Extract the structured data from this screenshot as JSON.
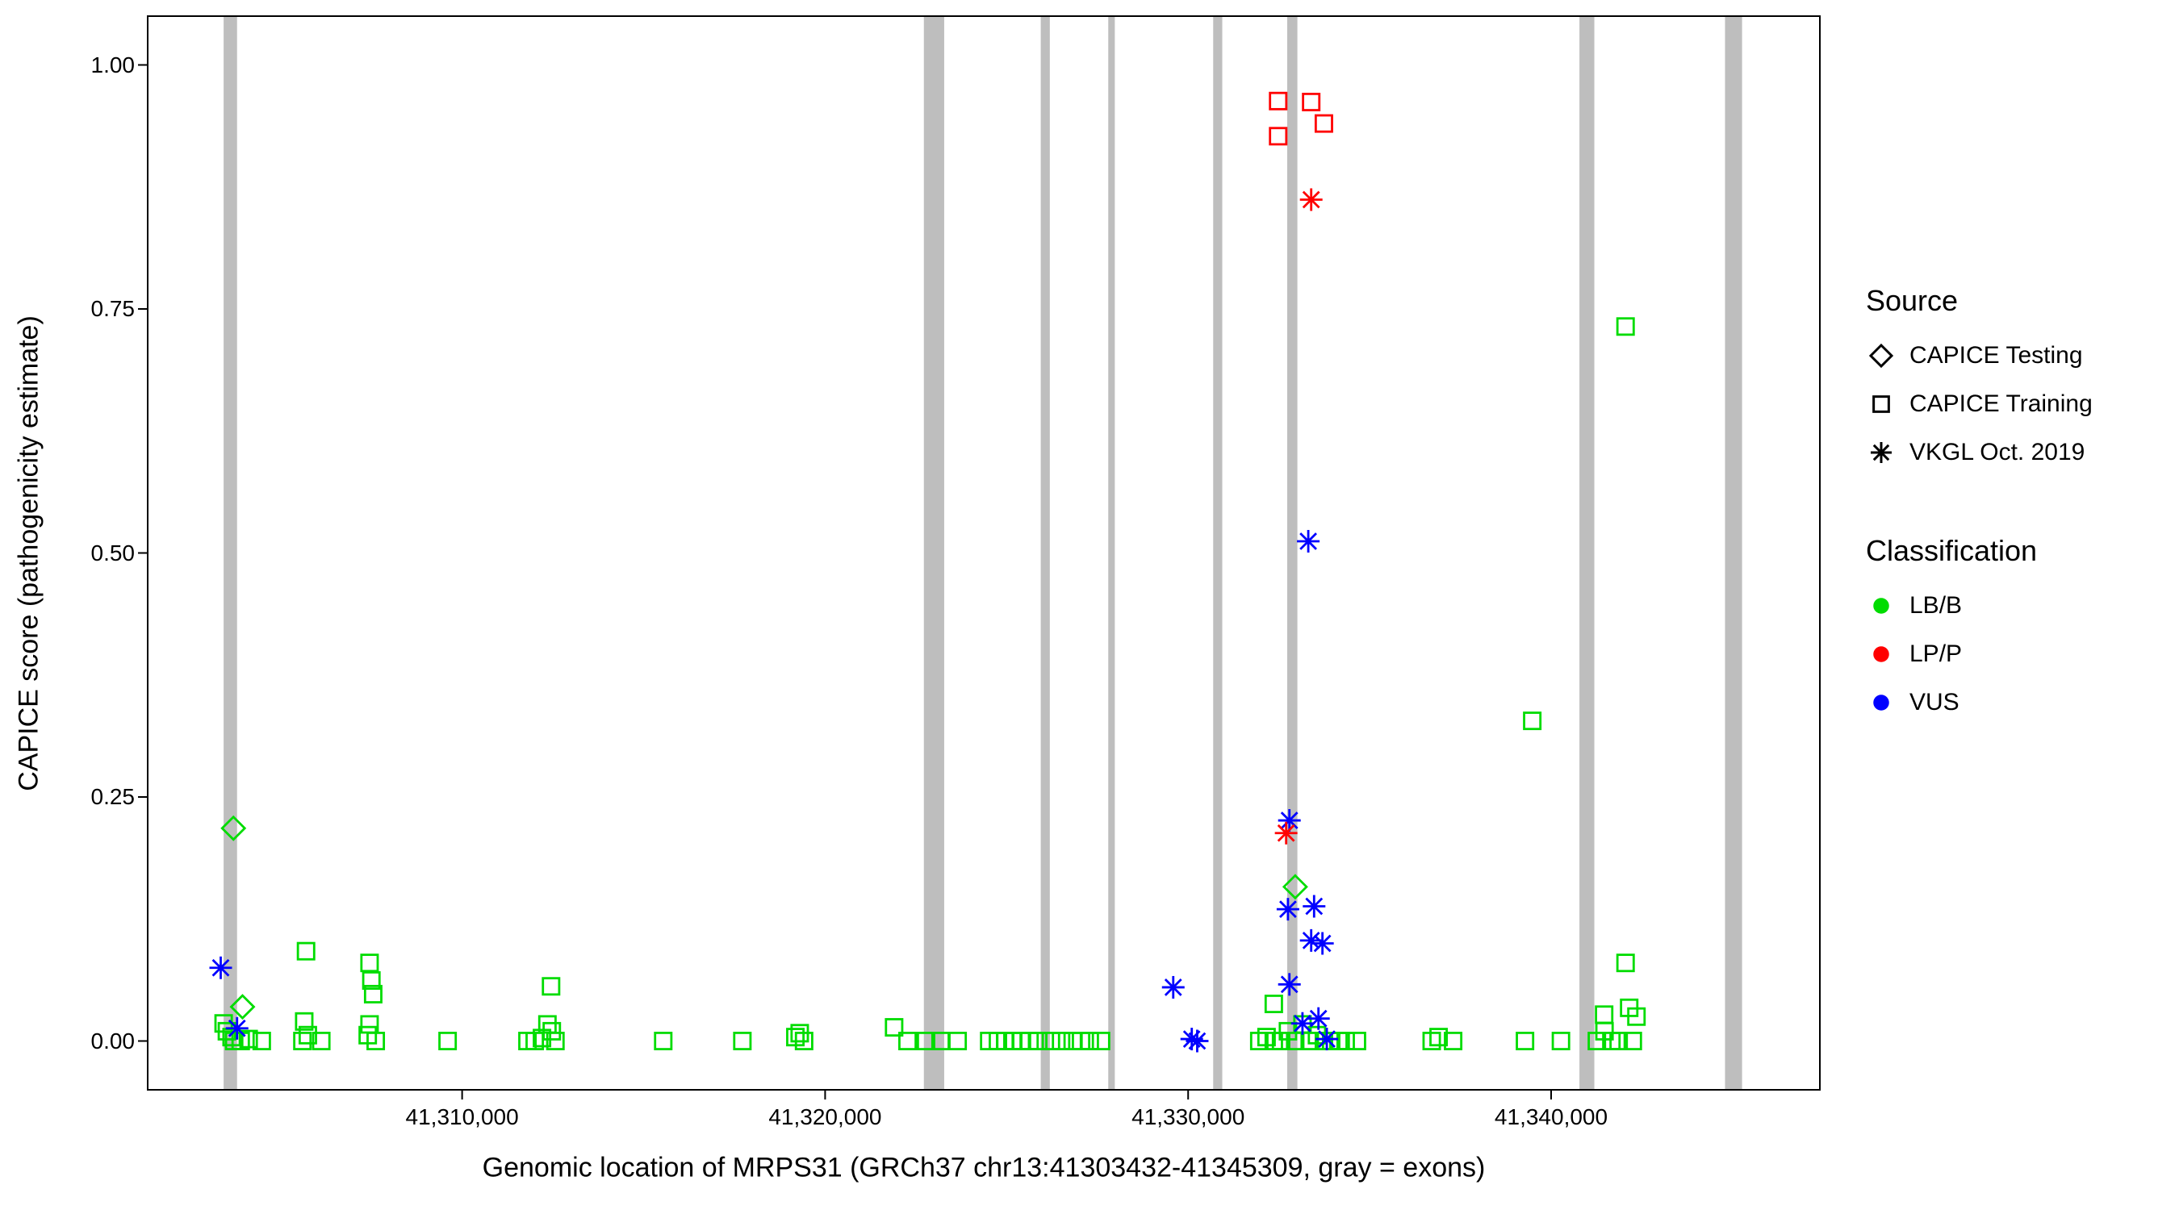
{
  "figure": {
    "background": "#FFFFFF",
    "panel_border_color": "#000000",
    "text_color": "#000000"
  },
  "colors": {
    "LB/B": "#00DC00",
    "LP/P": "#FF0000",
    "VUS": "#0000FF",
    "exon": "#BEBEBE"
  },
  "legend": {
    "source": {
      "title": "Source",
      "items": [
        {
          "label": "CAPICE Testing",
          "shape": "diamond"
        },
        {
          "label": "CAPICE Training",
          "shape": "square"
        },
        {
          "label": "VKGL Oct. 2019",
          "shape": "asterisk"
        }
      ]
    },
    "classification": {
      "title": "Classification",
      "items": [
        {
          "label": "LB/B",
          "color": "#00DC00"
        },
        {
          "label": "LP/P",
          "color": "#FF0000"
        },
        {
          "label": "VUS",
          "color": "#0000FF"
        }
      ]
    }
  },
  "chart_data": {
    "type": "scatter",
    "xlabel": "Genomic location of MRPS31 (GRCh37 chr13:41303432-41345309, gray = exons)",
    "ylabel": "CAPICE score (pathogenicity estimate)",
    "xlim": [
      41301338,
      41347403
    ],
    "ylim": [
      -0.05,
      1.05
    ],
    "grid": false,
    "legend_position": "right",
    "x_ticks": {
      "values": [
        41310000,
        41320000,
        41330000,
        41340000
      ],
      "labels": [
        "41,310,000",
        "41,320,000",
        "41,330,000",
        "41,340,000"
      ]
    },
    "y_ticks": {
      "values": [
        0.0,
        0.25,
        0.5,
        0.75,
        1.0
      ],
      "labels": [
        "0.00",
        "0.25",
        "0.50",
        "0.75",
        "1.00"
      ]
    },
    "exon_note": "gray vertical bars = exons, format [start, end]",
    "exons": [
      [
        41303430,
        41303800
      ],
      [
        41322720,
        41323280
      ],
      [
        41325940,
        41326190
      ],
      [
        41327800,
        41327980
      ],
      [
        41330690,
        41330940
      ],
      [
        41332730,
        41333010
      ],
      [
        41340780,
        41341190
      ],
      [
        41344790,
        41345260
      ]
    ],
    "source_shapes": {
      "CAPICE Testing": "diamond",
      "CAPICE Training": "square",
      "VKGL Oct. 2019": "asterisk"
    },
    "point_format": [
      "genomic_position",
      "capice_score",
      "source",
      "classification"
    ],
    "points": [
      [
        41303430,
        0.018,
        "CAPICE Training",
        "LB/B"
      ],
      [
        41303520,
        0.01,
        "CAPICE Training",
        "LB/B"
      ],
      [
        41303650,
        0.004,
        "CAPICE Training",
        "LB/B"
      ],
      [
        41303720,
        0.0,
        "CAPICE Training",
        "LB/B"
      ],
      [
        41303900,
        0.0,
        "CAPICE Training",
        "LB/B"
      ],
      [
        41304120,
        0.002,
        "CAPICE Training",
        "LB/B"
      ],
      [
        41304480,
        0.0,
        "CAPICE Training",
        "LB/B"
      ],
      [
        41305600,
        0.0,
        "CAPICE Training",
        "LB/B"
      ],
      [
        41305650,
        0.02,
        "CAPICE Training",
        "LB/B"
      ],
      [
        41305700,
        0.092,
        "CAPICE Training",
        "LB/B"
      ],
      [
        41305750,
        0.006,
        "CAPICE Training",
        "LB/B"
      ],
      [
        41306120,
        0.0,
        "CAPICE Training",
        "LB/B"
      ],
      [
        41307400,
        0.006,
        "CAPICE Training",
        "LB/B"
      ],
      [
        41307450,
        0.08,
        "CAPICE Training",
        "LB/B"
      ],
      [
        41307450,
        0.017,
        "CAPICE Training",
        "LB/B"
      ],
      [
        41307500,
        0.062,
        "CAPICE Training",
        "LB/B"
      ],
      [
        41307550,
        0.048,
        "CAPICE Training",
        "LB/B"
      ],
      [
        41307620,
        0.0,
        "CAPICE Training",
        "LB/B"
      ],
      [
        41309600,
        0.0,
        "CAPICE Training",
        "LB/B"
      ],
      [
        41311800,
        0.0,
        "CAPICE Training",
        "LB/B"
      ],
      [
        41312000,
        0.0,
        "CAPICE Training",
        "LB/B"
      ],
      [
        41312200,
        0.003,
        "CAPICE Training",
        "LB/B"
      ],
      [
        41312350,
        0.017,
        "CAPICE Training",
        "LB/B"
      ],
      [
        41312450,
        0.056,
        "CAPICE Training",
        "LB/B"
      ],
      [
        41312470,
        0.01,
        "CAPICE Training",
        "LB/B"
      ],
      [
        41312570,
        0.0,
        "CAPICE Training",
        "LB/B"
      ],
      [
        41315540,
        0.0,
        "CAPICE Training",
        "LB/B"
      ],
      [
        41317720,
        0.0,
        "CAPICE Training",
        "LB/B"
      ],
      [
        41319180,
        0.004,
        "CAPICE Training",
        "LB/B"
      ],
      [
        41319300,
        0.008,
        "CAPICE Training",
        "LB/B"
      ],
      [
        41319420,
        0.0,
        "CAPICE Training",
        "LB/B"
      ],
      [
        41321900,
        0.014,
        "CAPICE Training",
        "LB/B"
      ],
      [
        41322270,
        0.0,
        "CAPICE Training",
        "LB/B"
      ],
      [
        41322780,
        0.0,
        "CAPICE Training",
        "LB/B"
      ],
      [
        41323180,
        0.0,
        "CAPICE Training",
        "LB/B"
      ],
      [
        41323650,
        0.0,
        "CAPICE Training",
        "LB/B"
      ],
      [
        41324520,
        0.0,
        "CAPICE Training",
        "LB/B"
      ],
      [
        41324760,
        0.0,
        "CAPICE Training",
        "LB/B"
      ],
      [
        41324960,
        0.0,
        "CAPICE Training",
        "LB/B"
      ],
      [
        41325160,
        0.0,
        "CAPICE Training",
        "LB/B"
      ],
      [
        41325390,
        0.0,
        "CAPICE Training",
        "LB/B"
      ],
      [
        41325630,
        0.0,
        "CAPICE Training",
        "LB/B"
      ],
      [
        41325870,
        0.0,
        "CAPICE Training",
        "LB/B"
      ],
      [
        41326220,
        0.0,
        "CAPICE Training",
        "LB/B"
      ],
      [
        41326500,
        0.0,
        "CAPICE Training",
        "LB/B"
      ],
      [
        41326820,
        0.0,
        "CAPICE Training",
        "LB/B"
      ],
      [
        41327050,
        0.0,
        "CAPICE Training",
        "LB/B"
      ],
      [
        41327290,
        0.0,
        "CAPICE Training",
        "LB/B"
      ],
      [
        41327600,
        0.0,
        "CAPICE Training",
        "LB/B"
      ],
      [
        41331960,
        0.0,
        "CAPICE Training",
        "LB/B"
      ],
      [
        41332160,
        0.004,
        "CAPICE Training",
        "LB/B"
      ],
      [
        41332360,
        0.038,
        "CAPICE Training",
        "LB/B"
      ],
      [
        41332360,
        0.0,
        "CAPICE Training",
        "LB/B"
      ],
      [
        41332560,
        0.0,
        "CAPICE Training",
        "LB/B"
      ],
      [
        41332750,
        0.01,
        "CAPICE Training",
        "LB/B"
      ],
      [
        41332950,
        0.0,
        "CAPICE Training",
        "LB/B"
      ],
      [
        41333150,
        0.017,
        "CAPICE Training",
        "LB/B"
      ],
      [
        41333350,
        0.0,
        "CAPICE Training",
        "LB/B"
      ],
      [
        41333550,
        0.006,
        "CAPICE Training",
        "LB/B"
      ],
      [
        41333740,
        0.0,
        "CAPICE Training",
        "LB/B"
      ],
      [
        41333940,
        0.0,
        "CAPICE Training",
        "LB/B"
      ],
      [
        41334140,
        0.0,
        "CAPICE Training",
        "LB/B"
      ],
      [
        41334340,
        0.0,
        "CAPICE Training",
        "LB/B"
      ],
      [
        41334650,
        0.0,
        "CAPICE Training",
        "LB/B"
      ],
      [
        41336710,
        0.0,
        "CAPICE Training",
        "LB/B"
      ],
      [
        41336900,
        0.004,
        "CAPICE Training",
        "LB/B"
      ],
      [
        41337300,
        0.0,
        "CAPICE Training",
        "LB/B"
      ],
      [
        41339280,
        0.0,
        "CAPICE Training",
        "LB/B"
      ],
      [
        41339480,
        0.328,
        "CAPICE Training",
        "LB/B"
      ],
      [
        41340270,
        0.0,
        "CAPICE Training",
        "LB/B"
      ],
      [
        41341260,
        0.0,
        "CAPICE Training",
        "LB/B"
      ],
      [
        41341460,
        0.027,
        "CAPICE Training",
        "LB/B"
      ],
      [
        41341470,
        0.01,
        "CAPICE Training",
        "LB/B"
      ],
      [
        41341660,
        0.0,
        "CAPICE Training",
        "LB/B"
      ],
      [
        41341860,
        0.0,
        "CAPICE Training",
        "LB/B"
      ],
      [
        41342050,
        0.08,
        "CAPICE Training",
        "LB/B"
      ],
      [
        41342050,
        0.732,
        "CAPICE Training",
        "LB/B"
      ],
      [
        41342150,
        0.034,
        "CAPICE Training",
        "LB/B"
      ],
      [
        41342250,
        0.0,
        "CAPICE Training",
        "LB/B"
      ],
      [
        41342350,
        0.025,
        "CAPICE Training",
        "LB/B"
      ],
      [
        41332480,
        0.963,
        "CAPICE Training",
        "LP/P"
      ],
      [
        41332480,
        0.927,
        "CAPICE Training",
        "LP/P"
      ],
      [
        41333390,
        0.962,
        "CAPICE Training",
        "LP/P"
      ],
      [
        41333740,
        0.94,
        "CAPICE Training",
        "LP/P"
      ],
      [
        41303700,
        0.218,
        "CAPICE Testing",
        "LB/B"
      ],
      [
        41303950,
        0.035,
        "CAPICE Testing",
        "LB/B"
      ],
      [
        41332950,
        0.158,
        "CAPICE Testing",
        "LB/B"
      ],
      [
        41303350,
        0.075,
        "VKGL Oct. 2019",
        "VUS"
      ],
      [
        41303800,
        0.013,
        "VKGL Oct. 2019",
        "VUS"
      ],
      [
        41329590,
        0.055,
        "VKGL Oct. 2019",
        "VUS"
      ],
      [
        41330100,
        0.002,
        "VKGL Oct. 2019",
        "VUS"
      ],
      [
        41330250,
        0.0,
        "VKGL Oct. 2019",
        "VUS"
      ],
      [
        41332750,
        0.135,
        "VKGL Oct. 2019",
        "VUS"
      ],
      [
        41332790,
        0.226,
        "VKGL Oct. 2019",
        "VUS"
      ],
      [
        41332790,
        0.058,
        "VKGL Oct. 2019",
        "VUS"
      ],
      [
        41333150,
        0.018,
        "VKGL Oct. 2019",
        "VUS"
      ],
      [
        41333310,
        0.512,
        "VKGL Oct. 2019",
        "VUS"
      ],
      [
        41333390,
        0.103,
        "VKGL Oct. 2019",
        "VUS"
      ],
      [
        41333470,
        0.138,
        "VKGL Oct. 2019",
        "VUS"
      ],
      [
        41333590,
        0.023,
        "VKGL Oct. 2019",
        "VUS"
      ],
      [
        41333700,
        0.1,
        "VKGL Oct. 2019",
        "VUS"
      ],
      [
        41333820,
        0.002,
        "VKGL Oct. 2019",
        "VUS"
      ],
      [
        41332700,
        0.213,
        "VKGL Oct. 2019",
        "LP/P"
      ],
      [
        41333390,
        0.862,
        "VKGL Oct. 2019",
        "LP/P"
      ]
    ]
  }
}
